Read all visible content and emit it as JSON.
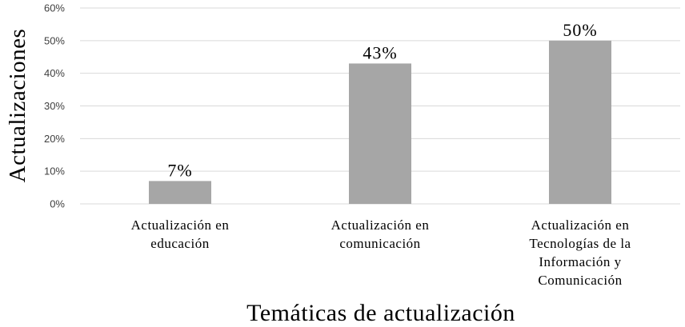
{
  "chart_data": {
    "type": "bar",
    "categories": [
      [
        "Actualización en",
        "educación"
      ],
      [
        "Actualización en",
        "comunicación"
      ],
      [
        "Actualización en",
        "Tecnologías de la",
        "Información y",
        "Comunicación"
      ]
    ],
    "values": [
      7,
      43,
      50
    ],
    "data_labels": [
      "7%",
      "43%",
      "50%"
    ],
    "xlabel": "Temáticas de actualización",
    "ylabel": "Actualizaciones",
    "ylim": [
      0,
      60
    ],
    "yticks": [
      0,
      10,
      20,
      30,
      40,
      50,
      60
    ],
    "ytick_labels": [
      "0%",
      "10%",
      "20%",
      "30%",
      "40%",
      "50%",
      "60%"
    ],
    "grid": true,
    "legend": "none",
    "bar_color": "#a6a6a6"
  }
}
